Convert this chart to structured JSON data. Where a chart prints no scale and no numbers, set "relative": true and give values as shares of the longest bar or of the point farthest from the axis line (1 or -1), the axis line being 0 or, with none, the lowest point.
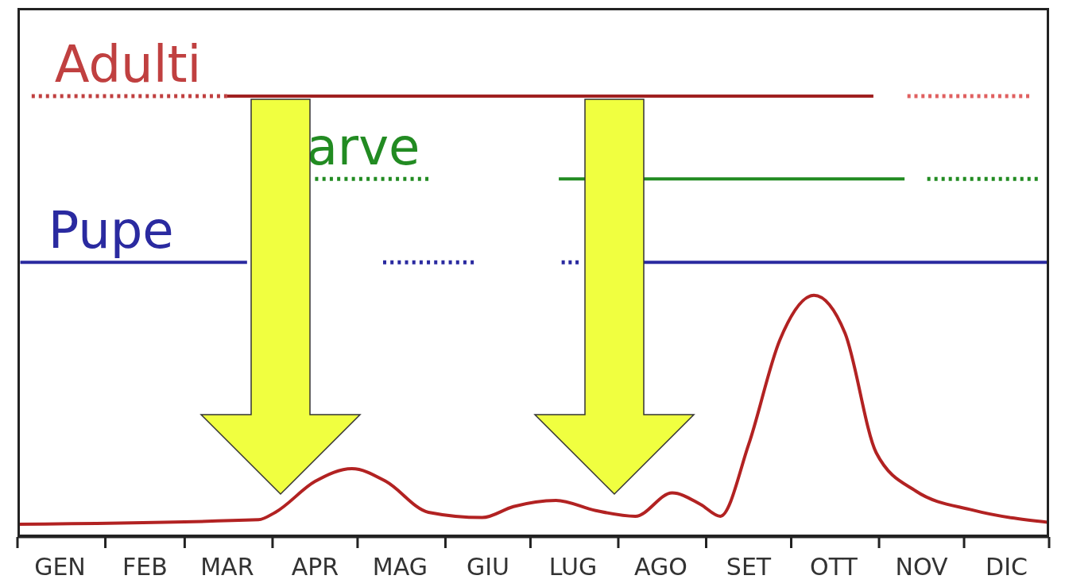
{
  "chart_data": {
    "type": "line",
    "relative": true,
    "xlim": [
      "--01-01",
      "--12-31"
    ],
    "xticks": [
      {
        "value": "--01-01",
        "label": null
      },
      {
        "value": "--01-16",
        "label": "GEN"
      },
      {
        "value": "--02-01",
        "label": null
      },
      {
        "value": "--02-15",
        "label": "FEB"
      },
      {
        "value": "--03-01",
        "label": null
      },
      {
        "value": "--03-16",
        "label": "MAR"
      },
      {
        "value": "--04-01",
        "label": null
      },
      {
        "value": "--04-16",
        "label": "APR"
      },
      {
        "value": "--05-01",
        "label": null
      },
      {
        "value": "--05-16",
        "label": "MAG"
      },
      {
        "value": "--06-01",
        "label": null
      },
      {
        "value": "--06-16",
        "label": "GIU"
      },
      {
        "value": "--07-01",
        "label": null
      },
      {
        "value": "--07-16",
        "label": "LUG"
      },
      {
        "value": "--08-01",
        "label": null
      },
      {
        "value": "--08-16",
        "label": "AGO"
      },
      {
        "value": "--09-01",
        "label": null
      },
      {
        "value": "--09-16",
        "label": "SET"
      },
      {
        "value": "--10-01",
        "label": null
      },
      {
        "value": "--10-16",
        "label": "OTT"
      },
      {
        "value": "--11-01",
        "label": null
      },
      {
        "value": "--11-16",
        "label": "NOV"
      },
      {
        "value": "--12-01",
        "label": null
      },
      {
        "value": "--12-16",
        "label": "DIC"
      },
      {
        "value": "--12-31",
        "label": null
      }
    ],
    "series": [
      {
        "color": "#b22222",
        "line_style": "solid",
        "x": [
          "--01-01",
          "--03-27",
          "--04-02",
          "--04-16",
          "--04-29",
          "--05-11",
          "--05-26",
          "--06-14",
          "--06-25",
          "--07-10",
          "--07-24",
          "--08-07",
          "--08-20",
          "--08-30",
          "--09-06",
          "--09-16",
          "--09-27",
          "--10-09",
          "--10-20",
          "--10-31",
          "--11-14",
          "--12-04",
          "--12-31"
        ],
        "values": [
          0.029,
          0.039,
          0.056,
          0.126,
          0.155,
          0.126,
          0.056,
          0.044,
          0.069,
          0.083,
          0.06,
          0.047,
          0.1,
          0.074,
          0.047,
          0.21,
          0.447,
          0.548,
          0.462,
          0.191,
          0.104,
          0.061,
          0.033
        ]
      },
      {
        "color": "#c04040",
        "line_style": "dotted",
        "x": [
          "--01-06",
          "--03-16"
        ],
        "values": [
          1,
          1
        ]
      },
      {
        "color": "#a02020",
        "line_style": "solid",
        "x": [
          "--03-16",
          "--10-30"
        ],
        "values": [
          1,
          1
        ]
      },
      {
        "color": "#e06060",
        "line_style": "dotted",
        "x": [
          "--11-11",
          "--12-24"
        ],
        "values": [
          1,
          1
        ]
      },
      {
        "color": "#228b22",
        "line_style": "dotted",
        "x": [
          "--04-16",
          "--05-26"
        ],
        "values": [
          0.812,
          0.812
        ]
      },
      {
        "color": "#228b22",
        "line_style": "solid",
        "x": [
          "--07-11",
          "--11-10"
        ],
        "values": [
          0.812,
          0.812
        ]
      },
      {
        "color": "#228b22",
        "line_style": "dotted",
        "x": [
          "--11-18",
          "--12-27"
        ],
        "values": [
          0.812,
          0.812
        ]
      },
      {
        "color": "#2a2aa0",
        "line_style": "solid",
        "x": [
          "--01-02",
          "--03-23"
        ],
        "values": [
          0.623,
          0.623
        ]
      },
      {
        "color": "#2a2aa0",
        "line_style": "dotted",
        "x": [
          "--05-10",
          "--06-11"
        ],
        "values": [
          0.623,
          0.623
        ]
      },
      {
        "color": "#2a2aa0",
        "line_style": "dotted",
        "x": [
          "--07-12",
          "--07-18"
        ],
        "values": [
          0.623,
          0.623
        ]
      },
      {
        "color": "#2a2aa0",
        "line_style": "solid",
        "x": [
          "--08-10",
          "--12-31"
        ],
        "values": [
          0.623,
          0.623
        ]
      }
    ],
    "annotations": [
      {
        "text": "Adulti",
        "x": "--02-09",
        "y": 1
      },
      {
        "text": "arve",
        "x": "--05-03",
        "y": 0.812
      },
      {
        "text": "Pupe",
        "x": "--02-03",
        "y": 0.623
      }
    ]
  }
}
